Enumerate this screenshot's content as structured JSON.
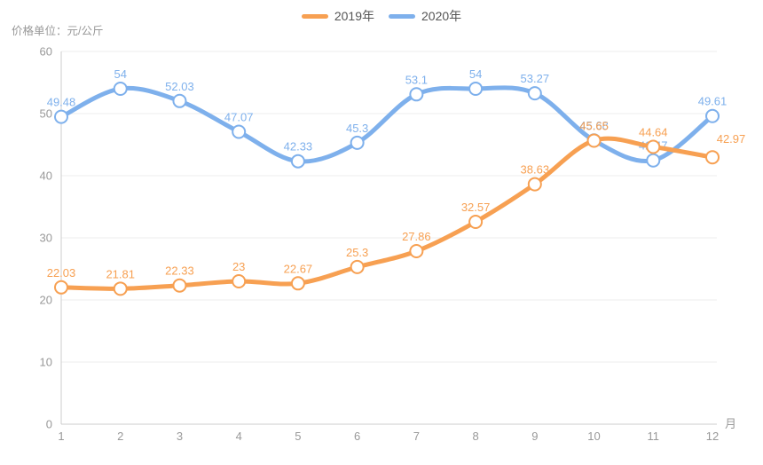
{
  "unit_label": "价格单位：元/公斤",
  "legend": {
    "items": [
      {
        "name": "2019年",
        "color": "#f7a052"
      },
      {
        "name": "2020年",
        "color": "#7eb0ec"
      }
    ]
  },
  "chart_data": {
    "type": "line",
    "smooth": true,
    "grid": true,
    "title": "",
    "xlabel": "月",
    "ylabel": "价格单位：元/公斤",
    "x": [
      1,
      2,
      3,
      4,
      5,
      6,
      7,
      8,
      9,
      10,
      11,
      12
    ],
    "ylim": [
      0,
      60
    ],
    "ytick_step": 10,
    "yticks": [
      0,
      10,
      20,
      30,
      40,
      50,
      60
    ],
    "legend_position": "top-center",
    "series": [
      {
        "name": "2019年",
        "color": "#f7a052",
        "values": [
          22.03,
          21.81,
          22.33,
          23,
          22.67,
          25.3,
          27.86,
          32.57,
          38.63,
          45.65,
          44.64,
          42.97
        ],
        "labels": [
          "22.03",
          "21.81",
          "22.33",
          "23",
          "22.67",
          "25.3",
          "27.86",
          "32.57",
          "38.63",
          "45.65",
          "44.64",
          "42.97"
        ],
        "label_offsets": {
          "11": [
            21,
            -4
          ]
        }
      },
      {
        "name": "2020年",
        "color": "#7eb0ec",
        "values": [
          49.48,
          54,
          52.03,
          47.07,
          42.33,
          45.3,
          53.1,
          54,
          53.27,
          45.68,
          42.47,
          49.61
        ],
        "labels": [
          "49.48",
          "54",
          "52.03",
          "47.07",
          "42.33",
          "45.3",
          "53.1",
          "54",
          "53.27",
          "45.68",
          "42.47",
          "49.61"
        ],
        "label_offsets": {}
      }
    ],
    "style": {
      "axis_line_color": "#cccccc",
      "grid_line_color": "#ececec",
      "axis_text_color": "#999999",
      "marker_fill": "#ffffff",
      "line_width": 5,
      "marker_radius": 7
    }
  }
}
